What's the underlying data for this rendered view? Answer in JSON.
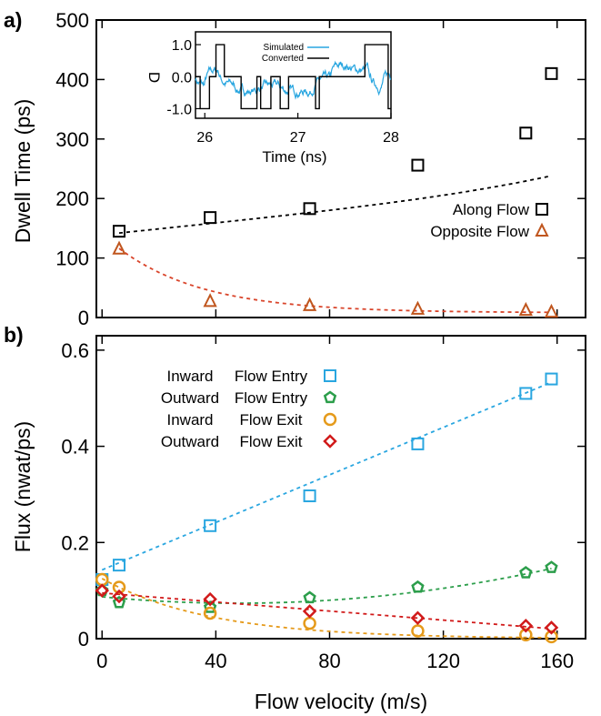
{
  "chart_data": [
    {
      "panel_label": "a)",
      "type": "scatter",
      "ylabel": "Dwell Time (ps)",
      "ylim": [
        0,
        500
      ],
      "xlim": [
        -2,
        170
      ],
      "yticks": [
        "0",
        "100",
        "200",
        "300",
        "400",
        "500"
      ],
      "legend_position": "right",
      "series": [
        {
          "name": "Along Flow",
          "marker": "square",
          "color": "#000000",
          "x": [
            6,
            38,
            73,
            111,
            149,
            158
          ],
          "y": [
            145,
            168,
            183,
            256,
            310,
            410
          ]
        },
        {
          "name": "Opposite Flow",
          "marker": "triangle",
          "color": "#c0561e",
          "x": [
            6,
            38,
            73,
            111,
            149,
            158
          ],
          "y": [
            115,
            27,
            20,
            14,
            12,
            9
          ]
        }
      ],
      "inset": {
        "type": "line",
        "xlabel": "Time (ns)",
        "ylabel": "D",
        "xlim": [
          25.9,
          28.0
        ],
        "ylim": [
          -1.3,
          1.4
        ],
        "xticks": [
          "26",
          "27",
          "28"
        ],
        "yticks": [
          "1.0",
          "0.0",
          "-1.0"
        ],
        "series": [
          {
            "name": "Simulated",
            "color": "#29a6e0"
          },
          {
            "name": "Converted",
            "color": "#000000",
            "steps": [
              [
                25.9,
                0
              ],
              [
                25.95,
                -1
              ],
              [
                26.05,
                0
              ],
              [
                26.12,
                1
              ],
              [
                26.21,
                0
              ],
              [
                26.39,
                -1
              ],
              [
                26.56,
                0
              ],
              [
                26.6,
                -1
              ],
              [
                26.71,
                0
              ],
              [
                26.81,
                -1
              ],
              [
                26.9,
                0
              ],
              [
                27.19,
                -1
              ],
              [
                27.23,
                0
              ],
              [
                27.72,
                1
              ],
              [
                27.97,
                -1
              ],
              [
                28.0,
                -1
              ]
            ]
          }
        ]
      }
    },
    {
      "panel_label": "b)",
      "type": "scatter",
      "xlabel": "Flow velocity (m/s)",
      "ylabel": "Flux (nwat/ps)",
      "xlim": [
        -2,
        170
      ],
      "ylim": [
        0,
        0.63
      ],
      "xticks": [
        "0",
        "40",
        "80",
        "120",
        "160"
      ],
      "yticks": [
        "0",
        "0.2",
        "0.4",
        "0.6"
      ],
      "legend_position": "top-left",
      "series": [
        {
          "name": "Inward Flow Entry",
          "direction": "Inward",
          "location": "Flow Entry",
          "marker": "square",
          "color": "#29a6e0",
          "x": [
            0,
            6,
            38,
            73,
            111,
            149,
            158
          ],
          "y": [
            0.123,
            0.153,
            0.235,
            0.297,
            0.405,
            0.51,
            0.54
          ]
        },
        {
          "name": "Outward Flow Entry",
          "direction": "Outward",
          "location": "Flow Entry",
          "marker": "pentagon",
          "color": "#2c9e4b",
          "x": [
            0,
            6,
            38,
            73,
            111,
            149,
            158
          ],
          "y": [
            0.1,
            0.075,
            0.065,
            0.085,
            0.107,
            0.137,
            0.148
          ]
        },
        {
          "name": "Inward Flow Exit",
          "direction": "Inward",
          "location": "Flow Exit",
          "marker": "circle",
          "color": "#e59a1a",
          "x": [
            0,
            6,
            38,
            73,
            111,
            149,
            158
          ],
          "y": [
            0.123,
            0.107,
            0.053,
            0.032,
            0.016,
            0.008,
            0.004
          ]
        },
        {
          "name": "Outward Flow Exit",
          "direction": "Outward",
          "location": "Flow Exit",
          "marker": "diamond",
          "color": "#d11a1a",
          "x": [
            0,
            6,
            38,
            73,
            111,
            149,
            158
          ],
          "y": [
            0.1,
            0.088,
            0.082,
            0.057,
            0.043,
            0.027,
            0.023
          ]
        }
      ]
    }
  ]
}
